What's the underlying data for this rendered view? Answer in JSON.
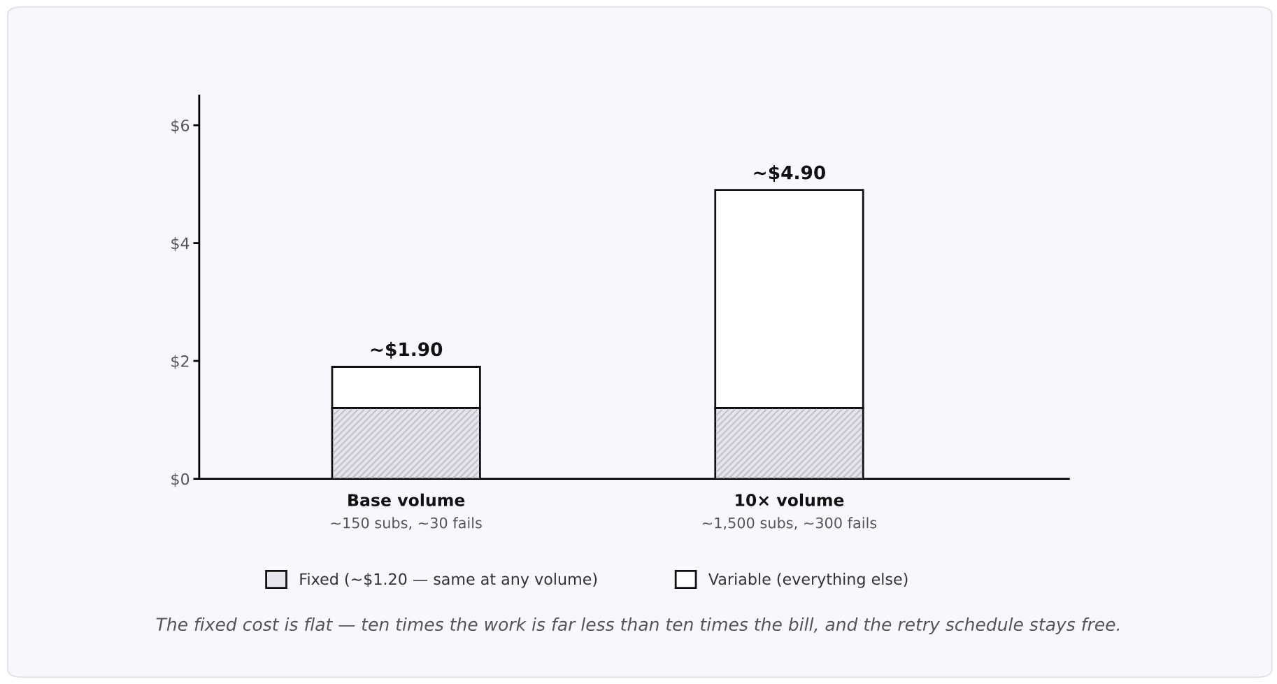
{
  "chart_data": {
    "type": "bar",
    "stacked": true,
    "categories": [
      "Base volume\n~150 subs, ~30 fails",
      "10× volume\n~1,500 subs, ~300 fails"
    ],
    "series": [
      {
        "name": "Fixed (~$1.20 — same at any volume)",
        "color": "#e6e4ec",
        "values": [
          1.2,
          1.2
        ]
      },
      {
        "name": "Variable (everything else)",
        "color": "#ffffff",
        "values": [
          0.7,
          3.7
        ]
      }
    ],
    "totals": [
      "~$1.90",
      "~$4.90"
    ],
    "ylim": [
      0,
      6.5
    ],
    "yticks": [
      {
        "value": 0,
        "label": "$0"
      },
      {
        "value": 2,
        "label": "$2"
      },
      {
        "value": 4,
        "label": "$4"
      },
      {
        "value": 6,
        "label": "$6"
      }
    ],
    "grid": false,
    "legend": "bottom",
    "annotations": [
      "The fixed cost is flat — ten times the work is far less than ten times the bill, and the retry schedule stays free."
    ]
  }
}
